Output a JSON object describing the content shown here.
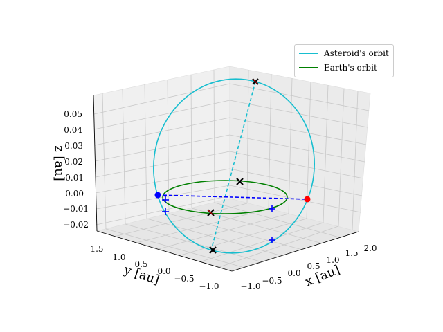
{
  "chart_data": {
    "type": "line",
    "projection": "3d",
    "title": "",
    "xlabel": "x [au]",
    "ylabel": "y [au]",
    "zlabel": "z [au]",
    "x_ticks": [
      "−1.0",
      "−0.5",
      "0.0",
      "0.5",
      "1.0",
      "1.5",
      "2.0"
    ],
    "y_ticks": [
      "1.5",
      "1.0",
      "0.5",
      "0.0",
      "−0.5",
      "−1.0"
    ],
    "z_ticks": [
      "0.05",
      "0.04",
      "0.03",
      "0.02",
      "0.01",
      "0.00",
      "−0.01",
      "−0.02"
    ],
    "xlim": [
      -1.2,
      2.2
    ],
    "ylim": [
      -1.2,
      1.7
    ],
    "zlim": [
      -0.025,
      0.058
    ],
    "grid": true,
    "legend_position": "top-right",
    "series": [
      {
        "name": "Asteroid's orbit",
        "color": "#17becf"
      },
      {
        "name": "Earth's orbit",
        "color": "#008000"
      }
    ],
    "colors": {
      "asteroid": "#17becf",
      "earth": "#008000",
      "node_line": "#0000ff",
      "apsides_line": "#17becf",
      "perihelion": "#ff0000",
      "aphelion": "#0000ff",
      "black_marker": "#000000",
      "red_marker": "#cc0000",
      "plus_marker": "#0000ff"
    }
  }
}
